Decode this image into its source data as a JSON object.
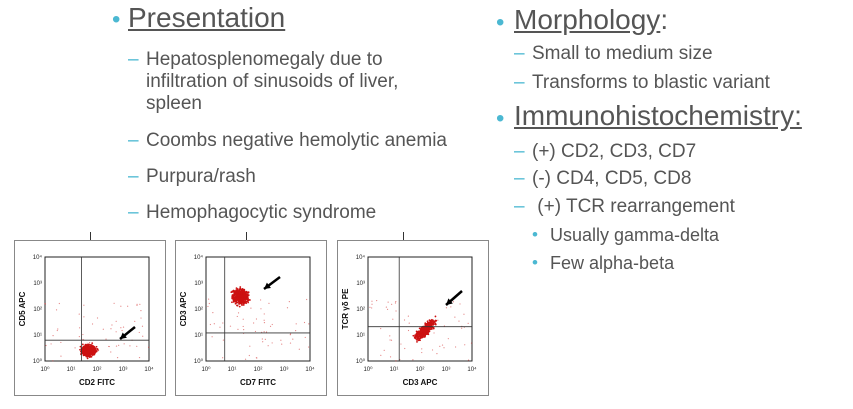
{
  "left": {
    "heading": "Presentation",
    "items": [
      "Hepatosplenomegaly due to infiltration of sinusoids of liver, spleen",
      "Coombs negative hemolytic anemia",
      "Purpura/rash",
      "Hemophagocytic syndrome"
    ]
  },
  "right": {
    "morph_heading": "Morphology",
    "morph_colon": ":",
    "morph_items": [
      "Small to medium size",
      "Transforms to blastic variant"
    ],
    "ihc_heading": "Immunohistochemistry:",
    "ihc_items": [
      "(+) CD2, CD3, CD7",
      "(-) CD4, CD5, CD8",
      " (+) TCR rearrangement"
    ],
    "ihc_subitems": [
      "Usually gamma-delta",
      "Few alpha-beta"
    ]
  },
  "plots": [
    {
      "xlabel": "CD2 FITC",
      "ylabel": "CD5 APC"
    },
    {
      "xlabel": "CD7 FITC",
      "ylabel": "CD3 APC"
    },
    {
      "xlabel": "CD3 APC",
      "ylabel": "TCR γδ PE"
    }
  ],
  "ticks": {
    "x": [
      "10⁰",
      "10¹",
      "10²",
      "10³",
      "10⁴"
    ],
    "y": [
      "10⁴",
      "10³",
      "10²",
      "10¹",
      "10⁰"
    ]
  },
  "colors": {
    "accent": "#4bb8d2",
    "text": "#555555",
    "dots": "#cc1111"
  }
}
